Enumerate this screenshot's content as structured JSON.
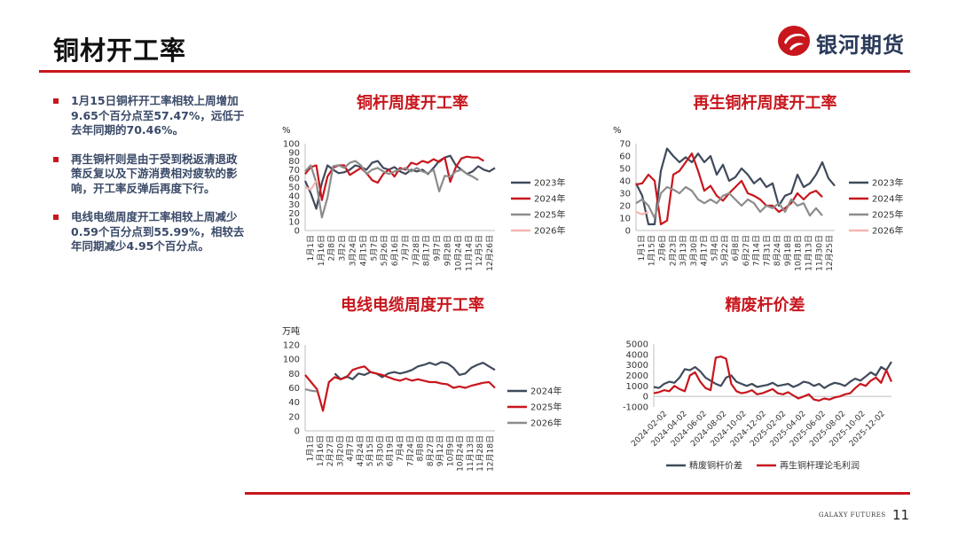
{
  "header": {
    "title": "铜材开工率",
    "brand": "银河期货",
    "footer_brand": "GALAXY FUTURES",
    "page_number": "11"
  },
  "colors": {
    "accent": "#c8161d",
    "navy": "#3a4a68",
    "series_2023": "#3f4a5b",
    "series_2024": "#c8161d",
    "series_2025": "#8c8c8c",
    "series_2026": "#f4b6b0"
  },
  "bullets": [
    "1月15日铜杆开工率相较上周增加9.65个百分点至57.47%，远低于去年同期的70.46%。",
    "再生铜杆则是由于受到税返清退政策反复以及下游消费相对疲软的影响，开工率反弹后再度下行。",
    "电线电缆周度开工率相较上周减少0.59个百分点到55.99%，相较去年同期减少4.95个百分点。"
  ],
  "chart_data": [
    {
      "id": "rod",
      "type": "line",
      "title": "铜杆周度开工率",
      "unit": "%",
      "ylim": [
        0,
        100
      ],
      "yticks": [
        0,
        10,
        20,
        30,
        40,
        50,
        60,
        70,
        80,
        90,
        100
      ],
      "xticks": [
        "1月1日",
        "1月16日",
        "2月8日",
        "3月2日",
        "3月24日",
        "4月15日",
        "5月7日",
        "5月26日",
        "6月16日",
        "7月7日",
        "7月28日",
        "8月17日",
        "9月7日",
        "9月28日",
        "10月24日",
        "11月14日",
        "12月5日",
        "12月26日"
      ],
      "series": [
        {
          "name": "2023年",
          "color": "#3f4a5b",
          "values": [
            57,
            43,
            25,
            55,
            75,
            70,
            66,
            67,
            70,
            75,
            73,
            70,
            78,
            80,
            72,
            70,
            73,
            68,
            65,
            70,
            68,
            70,
            65,
            72,
            80,
            84,
            86,
            75,
            70,
            65,
            68,
            74,
            70,
            68,
            72
          ]
        },
        {
          "name": "2024年",
          "color": "#c8161d",
          "values": [
            65,
            73,
            75,
            35,
            62,
            72,
            75,
            75,
            64,
            68,
            72,
            66,
            58,
            55,
            65,
            70,
            62,
            72,
            70,
            78,
            76,
            80,
            78,
            82,
            79,
            84,
            56,
            73,
            83,
            85,
            84,
            84,
            80
          ]
        },
        {
          "name": "2025年",
          "color": "#8c8c8c",
          "values": [
            68,
            75,
            55,
            15,
            38,
            74,
            75,
            72,
            78,
            80,
            75,
            65,
            70,
            72,
            68,
            65,
            68,
            70,
            72,
            68,
            72,
            68,
            66,
            70,
            45,
            63,
            62,
            68,
            70,
            65,
            62,
            58
          ]
        },
        {
          "name": "2026年",
          "color": "#f4b6b0",
          "values": [
            50,
            47,
            57
          ]
        }
      ]
    },
    {
      "id": "recycled",
      "type": "line",
      "title": "再生铜杆周度开工率",
      "unit": "%",
      "ylim": [
        0,
        70
      ],
      "yticks": [
        0,
        10,
        20,
        30,
        40,
        50,
        60,
        70
      ],
      "xticks": [
        "1月1日",
        "1月15日",
        "2月6日",
        "2月23日",
        "3月13日",
        "3月30日",
        "4月17日",
        "5月4日",
        "5月22日",
        "6月8日",
        "6月27日",
        "7月14日",
        "7月31日",
        "8月24日",
        "9月18日",
        "10月18日",
        "11月13日",
        "11月30日",
        "12月25日"
      ],
      "series": [
        {
          "name": "2023年",
          "color": "#3f4a5b",
          "values": [
            38,
            28,
            5,
            5,
            48,
            66,
            60,
            55,
            59,
            55,
            62,
            55,
            60,
            45,
            53,
            40,
            43,
            50,
            45,
            38,
            42,
            35,
            38,
            20,
            28,
            30,
            45,
            35,
            38,
            45,
            55,
            42,
            36
          ]
        },
        {
          "name": "2024年",
          "color": "#c8161d",
          "values": [
            37,
            38,
            45,
            40,
            5,
            8,
            45,
            48,
            55,
            62,
            48,
            32,
            36,
            28,
            24,
            30,
            35,
            40,
            30,
            28,
            25,
            20,
            20,
            15,
            18,
            22,
            30,
            25,
            30,
            32,
            27
          ]
        },
        {
          "name": "2025年",
          "color": "#8c8c8c",
          "values": [
            22,
            25,
            20,
            10,
            30,
            35,
            33,
            30,
            35,
            32,
            25,
            22,
            25,
            22,
            28,
            30,
            25,
            20,
            25,
            22,
            15,
            20,
            18,
            22,
            15,
            25,
            20,
            22,
            12,
            18,
            12
          ]
        },
        {
          "name": "2026年",
          "color": "#f4b6b0",
          "values": [
            15,
            13,
            15
          ]
        }
      ]
    },
    {
      "id": "cable",
      "type": "line",
      "title": "电线电缆周度开工率",
      "unit": "万吨",
      "ylim": [
        0,
        120
      ],
      "yticks": [
        0,
        20,
        40,
        60,
        80,
        100,
        120
      ],
      "xticks": [
        "1月1日",
        "1月16日",
        "2月27日",
        "3月20日",
        "4月7日",
        "4月24日",
        "5月15日",
        "5月30日",
        "6月19日",
        "7月4日",
        "7月24日",
        "8月8日",
        "8月27日",
        "9月12日",
        "10月9日",
        "10月24日",
        "11月13日",
        "11月28日",
        "12月18日"
      ],
      "series": [
        {
          "name": "2024年",
          "color": "#3f4a5b",
          "values": [
            null,
            null,
            null,
            null,
            null,
            80,
            72,
            76,
            72,
            80,
            78,
            82,
            80,
            75,
            80,
            82,
            80,
            82,
            85,
            90,
            92,
            95,
            92,
            96,
            94,
            88,
            78,
            80,
            88,
            92,
            95,
            90,
            85
          ]
        },
        {
          "name": "2025年",
          "color": "#c8161d",
          "values": [
            78,
            68,
            58,
            28,
            68,
            75,
            72,
            75,
            85,
            88,
            90,
            82,
            80,
            78,
            75,
            72,
            70,
            73,
            70,
            72,
            70,
            68,
            68,
            66,
            65,
            60,
            62,
            60,
            63,
            65,
            67,
            68,
            60
          ]
        },
        {
          "name": "2026年",
          "color": "#8c8c8c",
          "values": [
            58,
            56,
            55
          ]
        }
      ]
    },
    {
      "id": "spread",
      "type": "line",
      "title": "精废杆价差",
      "unit": "",
      "ylim": [
        -1000,
        5000
      ],
      "yticks": [
        -1000,
        0,
        1000,
        2000,
        3000,
        4000,
        5000
      ],
      "xticks": [
        "2024-02-02",
        "2024-04-02",
        "2024-06-02",
        "2024-08-02",
        "2024-10-02",
        "2024-12-02",
        "2025-02-02",
        "2025-04-02",
        "2025-06-02",
        "2025-08-02",
        "2025-10-02",
        "2025-12-02"
      ],
      "series": [
        {
          "name": "精废铜杆价差",
          "color": "#3f4a5b",
          "values": [
            900,
            800,
            1200,
            1400,
            1300,
            1800,
            2600,
            2500,
            2800,
            2400,
            1800,
            1500,
            1200,
            1000,
            1800,
            2000,
            1400,
            1200,
            1000,
            1200,
            900,
            1000,
            1100,
            1300,
            1000,
            1100,
            1200,
            900,
            1100,
            1400,
            1300,
            1000,
            1200,
            800,
            1100,
            1300,
            1200,
            1000,
            1400,
            1700,
            1500,
            1900,
            2300,
            2000,
            2800,
            2500,
            3300
          ]
        },
        {
          "name": "再生铜杆理论毛利润",
          "color": "#c8161d",
          "values": [
            300,
            400,
            600,
            500,
            1000,
            700,
            500,
            2000,
            2300,
            1400,
            800,
            600,
            3700,
            3800,
            3600,
            1200,
            500,
            300,
            400,
            600,
            200,
            300,
            500,
            700,
            300,
            200,
            400,
            100,
            -200,
            0,
            200,
            -300,
            -400,
            -200,
            -300,
            -100,
            0,
            200,
            300,
            800,
            1200,
            1000,
            1500,
            1800,
            1300,
            2500,
            1400
          ]
        }
      ]
    }
  ]
}
